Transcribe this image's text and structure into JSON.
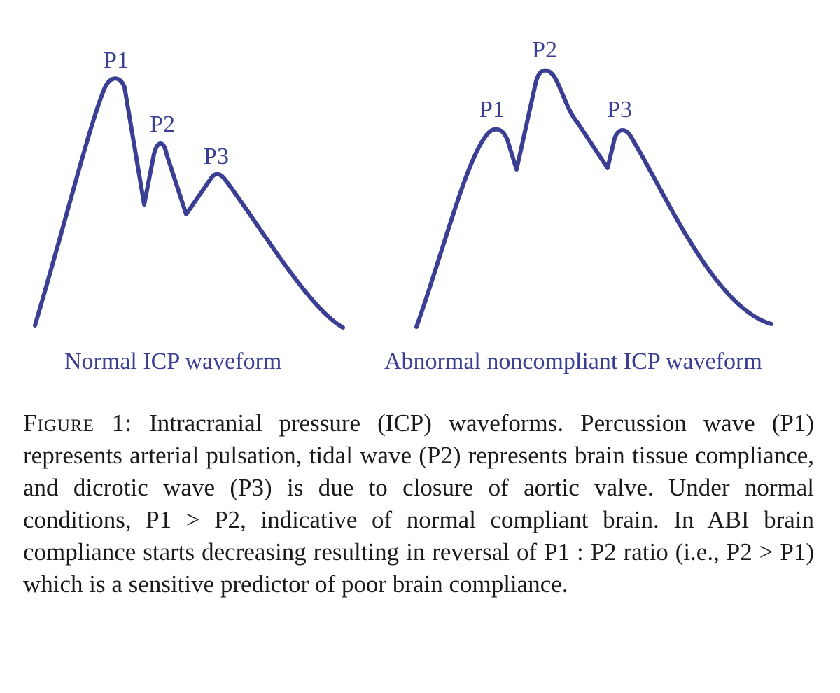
{
  "panels": [
    {
      "caption": "Normal ICP waveform",
      "peaks": {
        "p1": "P1",
        "p2": "P2",
        "p3": "P3"
      }
    },
    {
      "caption": "Abnormal noncompliant ICP waveform",
      "peaks": {
        "p1": "P1",
        "p2": "P2",
        "p3": "P3"
      }
    }
  ],
  "caption": {
    "label": "Figure 1:",
    "text": "Intracranial pressure (ICP) waveforms. Percussion wave (P1) represents arterial pulsation, tidal wave (P2) represents brain tissue compliance, and dicrotic wave (P3) is due to closure of aortic valve. Under normal conditions, P1 > P2, indicative of normal compliant brain. In ABI brain compliance starts decreasing resulting in reversal of P1 : P2 ratio (i.e., P2 > P1) which is a sensitive predictor of poor brain compliance."
  },
  "colors": {
    "waveform": "#3a3f94",
    "text": "#1a1a1a"
  }
}
